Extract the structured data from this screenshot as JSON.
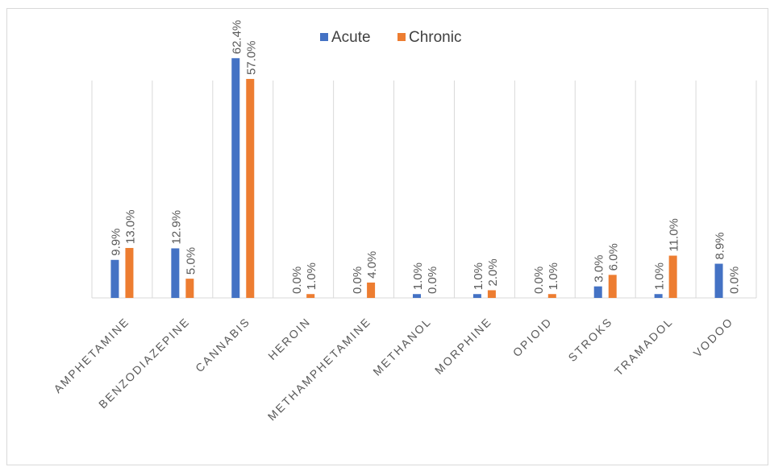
{
  "chart_data": {
    "type": "bar",
    "title": "",
    "xlabel": "",
    "ylabel": "",
    "ylim": [
      0,
      0.7
    ],
    "grid": "vertical category separators",
    "legend_position": "top-center",
    "categories": [
      "AMPHETAMINE",
      "BENZODIAZEPINE",
      "CANNABIS",
      "HEROIN",
      "METHAMPHETAMINE",
      "METHANOL",
      "MORPHINE",
      "OPIOID",
      "STROKS",
      "TRAMADOL",
      "VODOO"
    ],
    "series": [
      {
        "name": "Acute",
        "color": "#4472c4",
        "values": [
          0.099,
          0.129,
          0.624,
          0.0,
          0.0,
          0.01,
          0.01,
          0.0,
          0.03,
          0.01,
          0.089
        ],
        "labels": [
          "9.9%",
          "12.9%",
          "62.4%",
          "0.0%",
          "0.0%",
          "1.0%",
          "1.0%",
          "0.0%",
          "3.0%",
          "1.0%",
          "8.9%"
        ]
      },
      {
        "name": "Chronic",
        "color": "#ed7d31",
        "values": [
          0.13,
          0.05,
          0.57,
          0.01,
          0.04,
          0.0,
          0.02,
          0.01,
          0.06,
          0.11,
          0.0
        ],
        "labels": [
          "13.0%",
          "5.0%",
          "57.0%",
          "1.0%",
          "4.0%",
          "0.0%",
          "2.0%",
          "1.0%",
          "6.0%",
          "11.0%",
          "0.0%"
        ]
      }
    ]
  }
}
